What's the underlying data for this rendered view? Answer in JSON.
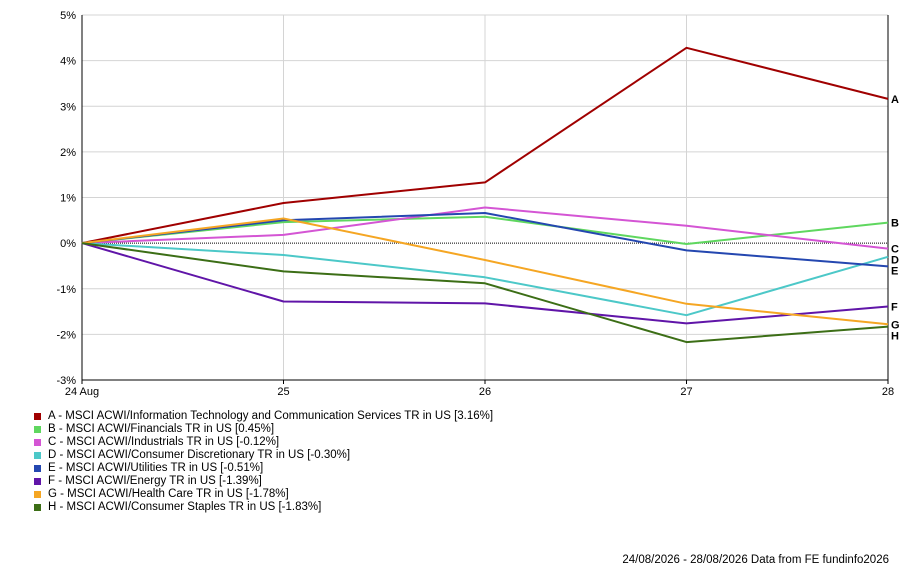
{
  "chart_data": {
    "type": "line",
    "x": [
      "24 Aug",
      "25",
      "26",
      "27",
      "28"
    ],
    "ylim": [
      -3,
      5
    ],
    "yticks": [
      5,
      4,
      3,
      2,
      1,
      0,
      -1,
      -2,
      -3
    ],
    "ytick_labels": [
      "5%",
      "4%",
      "3%",
      "2%",
      "1%",
      "0%",
      "-1%",
      "-2%",
      "-3%"
    ],
    "grid": true,
    "legend_position": "bottom-left",
    "series": [
      {
        "id": "A",
        "name": "A - MSCI ACWI/Information Technology and Communication Services TR in US [3.16%]",
        "color": "#a00000",
        "values": [
          0,
          0.88,
          1.33,
          4.28,
          3.16
        ]
      },
      {
        "id": "B",
        "name": "B - MSCI ACWI/Financials TR in US [0.45%]",
        "color": "#5fd75f",
        "values": [
          0,
          0.46,
          0.58,
          -0.02,
          0.45
        ]
      },
      {
        "id": "C",
        "name": "C - MSCI ACWI/Industrials TR in US [-0.12%]",
        "color": "#d455d4",
        "values": [
          0,
          0.18,
          0.78,
          0.38,
          -0.12
        ]
      },
      {
        "id": "D",
        "name": "D - MSCI ACWI/Consumer Discretionary TR in US [-0.30%]",
        "color": "#4cc8c8",
        "values": [
          0,
          -0.26,
          -0.75,
          -1.58,
          -0.3
        ]
      },
      {
        "id": "E",
        "name": "E - MSCI ACWI/Utilities TR in US [-0.51%]",
        "color": "#2447b0",
        "values": [
          0,
          0.5,
          0.66,
          -0.16,
          -0.51
        ]
      },
      {
        "id": "F",
        "name": "F - MSCI ACWI/Energy TR in US [-1.39%]",
        "color": "#6015a8",
        "values": [
          0,
          -1.28,
          -1.32,
          -1.76,
          -1.39
        ]
      },
      {
        "id": "G",
        "name": "G - MSCI ACWI/Health Care TR in US [-1.78%]",
        "color": "#f5a623",
        "values": [
          0,
          0.54,
          -0.37,
          -1.33,
          -1.78
        ]
      },
      {
        "id": "H",
        "name": "H - MSCI ACWI/Consumer Staples TR in US [-1.83%]",
        "color": "#3c6e16",
        "values": [
          0,
          -0.62,
          -0.88,
          -2.17,
          -1.83
        ]
      }
    ]
  },
  "footer": "24/08/2026 - 28/08/2026 Data from FE fundinfo2026"
}
